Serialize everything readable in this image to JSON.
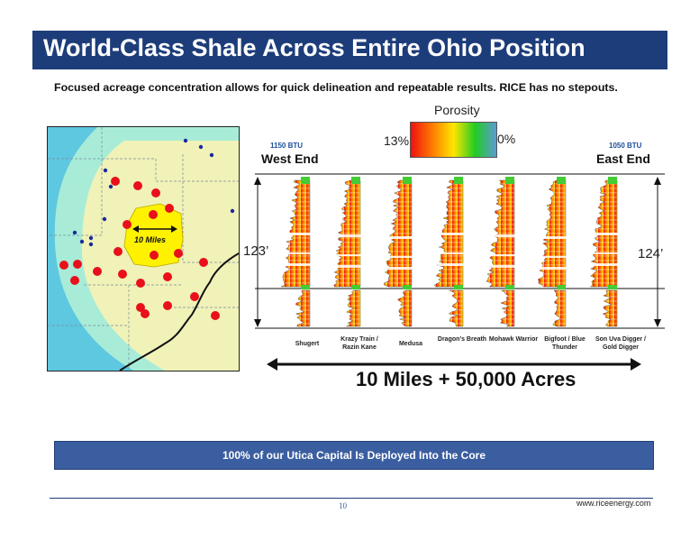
{
  "title": "World-Class Shale Across Entire Ohio Position",
  "subtitle": "Focused acreage concentration allows for quick delineation and repeatable results.  RICE has no stepouts.",
  "map": {
    "scale_label": "10 Miles"
  },
  "porosity": {
    "title": "Porosity",
    "max_label": "13%",
    "min_label": "0%"
  },
  "west": {
    "btu": "1150 BTU",
    "label": "West End",
    "thickness": "123’"
  },
  "east": {
    "btu": "1050 BTU",
    "label": "East End",
    "thickness": "124’"
  },
  "wells": [
    "Shugert",
    "Krazy Train / Razin Kane",
    "Medusa",
    "Dragon’s Breath",
    "Mohawk Warrior",
    "Bigfoot / Blue Thunder",
    "Son Uva Digger / Gold Digger"
  ],
  "span_text": "10 Miles  +  50,000 Acres",
  "banner": "100% of our Utica Capital Is Deployed Into the Core",
  "footer": {
    "page": "10",
    "website": "www.riceenergy.com"
  },
  "colors": {
    "title_bar": "#1d3d7a",
    "banner": "#3b5ea0",
    "map_outer": "#5ec8e0",
    "map_mid": "#a8ecd8",
    "map_inner": "#f0f2b8",
    "core": "#fff200",
    "dot_red": "#e8101a",
    "dot_blue": "#1a2a9c"
  }
}
